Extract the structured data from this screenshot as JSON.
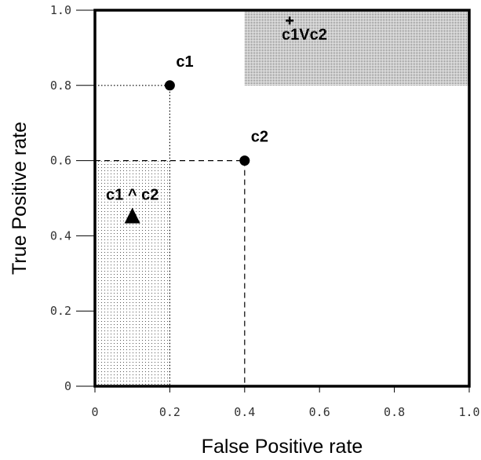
{
  "chart_data": {
    "type": "scatter",
    "title": "",
    "xlabel": "False Positive rate",
    "ylabel": "True Positive rate",
    "xlim": [
      0,
      1
    ],
    "ylim": [
      0,
      1
    ],
    "x_ticks": [
      0,
      0.2,
      0.4,
      0.6,
      0.8,
      1.0
    ],
    "x_tick_labels": [
      "0",
      "0.2",
      "0.4",
      "0.6",
      "0.8",
      "1.0"
    ],
    "y_ticks": [
      0,
      0.2,
      0.4,
      0.6,
      0.8,
      1.0
    ],
    "y_tick_labels": [
      "0",
      "0.2",
      "0.4",
      "0.6",
      "0.8",
      "1.0"
    ],
    "grid": false,
    "points": [
      {
        "label": "c1",
        "x": 0.2,
        "y": 0.8,
        "marker": "circle"
      },
      {
        "label": "c2",
        "x": 0.4,
        "y": 0.6,
        "marker": "circle"
      },
      {
        "label": "c1 ^ c2",
        "x": 0.1,
        "y": 0.45,
        "marker": "triangle"
      },
      {
        "label": "c1Vc2",
        "x": 0.52,
        "y": 0.92,
        "marker": "plus"
      }
    ],
    "regions": [
      {
        "name": "c1 ^ c2",
        "x": [
          0,
          0.2
        ],
        "y": [
          0,
          0.6
        ],
        "fill": "light-dotted"
      },
      {
        "name": "c1Vc2",
        "x": [
          0.4,
          1.0
        ],
        "y": [
          0.8,
          1.0
        ],
        "fill": "dark-dotted"
      }
    ],
    "guides": [
      {
        "from": [
          0,
          0.8
        ],
        "to": [
          0.2,
          0.8
        ],
        "style": "dotted"
      },
      {
        "from": [
          0.2,
          0.8
        ],
        "to": [
          0.2,
          0
        ],
        "style": "dotted"
      },
      {
        "from": [
          0,
          0.6
        ],
        "to": [
          0.4,
          0.6
        ],
        "style": "dashed"
      },
      {
        "from": [
          0.4,
          0.6
        ],
        "to": [
          0.4,
          0
        ],
        "style": "dashed"
      }
    ]
  }
}
